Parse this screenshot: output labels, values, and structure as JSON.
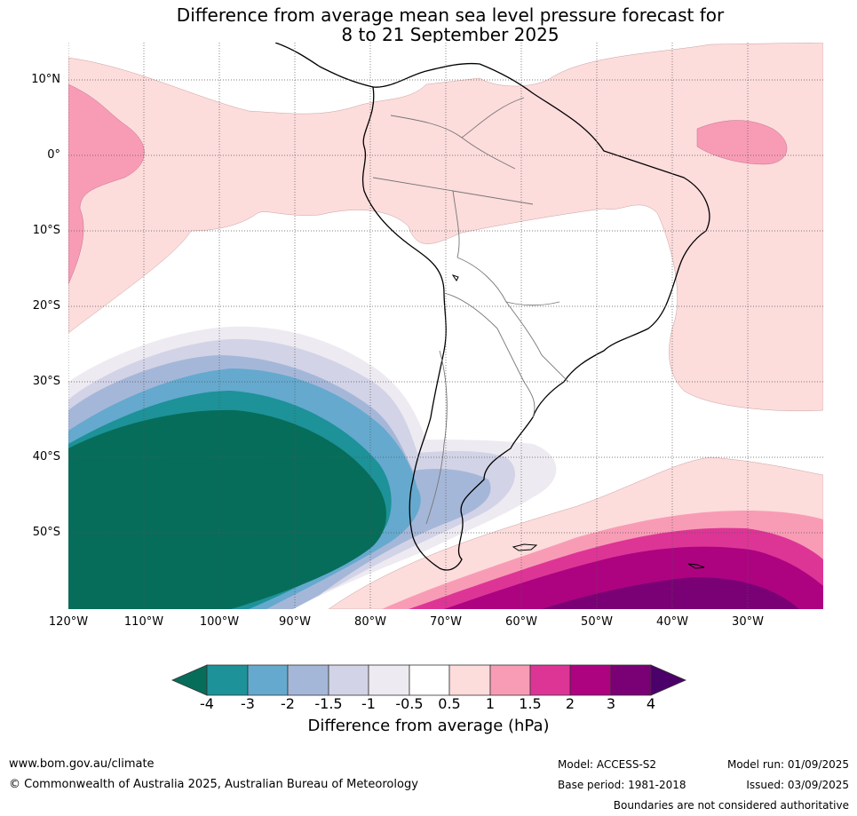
{
  "title_line1": "Difference from average mean sea level pressure forecast for",
  "title_line2": "8 to 21 September 2025",
  "map": {
    "lat_labels": [
      "10°N",
      "0°",
      "10°S",
      "20°S",
      "30°S",
      "40°S",
      "50°S"
    ],
    "lon_labels": [
      "120°W",
      "110°W",
      "100°W",
      "90°W",
      "80°W",
      "70°W",
      "60°W",
      "50°W",
      "40°W",
      "30°W"
    ],
    "region_extent": {
      "lon": [
        -120,
        -20
      ],
      "lat": [
        -60,
        15
      ]
    },
    "grid": true
  },
  "colorbar": {
    "title": "Difference from average (hPa)",
    "tick_labels": [
      "-4",
      "-3",
      "-2",
      "-1.5",
      "-1",
      "-0.5",
      "0.5",
      "1",
      "1.5",
      "2",
      "3",
      "4"
    ],
    "colors": [
      "#066d5a",
      "#1d9298",
      "#65a9ce",
      "#a5b7d8",
      "#d2d3e7",
      "#eeeaf1",
      "#ffffff",
      "#fddcdc",
      "#f89cb6",
      "#dd3596",
      "#ad0381",
      "#7a0075",
      "#4c006a"
    ]
  },
  "footer": {
    "website": "www.bom.gov.au/climate",
    "copyright": "© Commonwealth of Australia 2025, Australian Bureau of Meteorology",
    "model": "Model: ACCESS-S2",
    "base_period": "Base period: 1981-2018",
    "model_run": "Model run: 01/09/2025",
    "issued": "Issued: 03/09/2025",
    "disclaimer": "Boundaries are not considered authoritative"
  }
}
